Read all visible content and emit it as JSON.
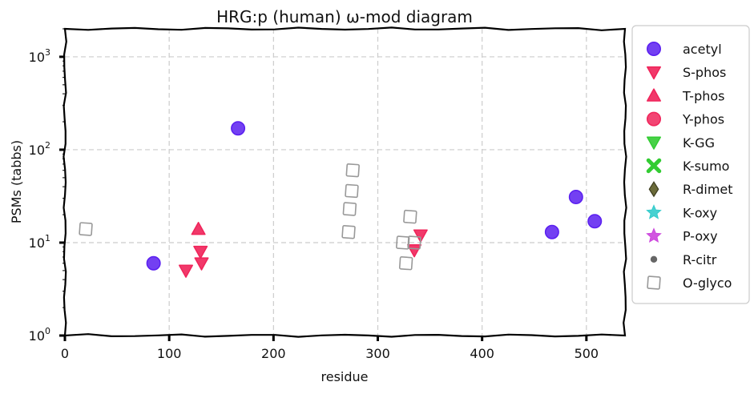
{
  "chart_data": {
    "type": "scatter",
    "title": "HRG:p (human) ω-mod diagram",
    "xlabel": "residue",
    "ylabel": "PSMs (tabbs)",
    "xlim": [
      0,
      537
    ],
    "ylim": [
      1,
      2000
    ],
    "yscale": "log",
    "xticks": [
      0,
      100,
      200,
      300,
      400,
      500
    ],
    "yticks": [
      {
        "value": 1,
        "base": "10",
        "exp": "0"
      },
      {
        "value": 10,
        "base": "10",
        "exp": "1"
      },
      {
        "value": 100,
        "base": "10",
        "exp": "2"
      },
      {
        "value": 1000,
        "base": "10",
        "exp": "3"
      }
    ],
    "grid": true,
    "legend_position": "outside-right",
    "series": [
      {
        "name": "acetyl",
        "marker": "circle",
        "color": "#5a1ff0",
        "points": [
          [
            85,
            6
          ],
          [
            166,
            170
          ],
          [
            467,
            13
          ],
          [
            490,
            31
          ],
          [
            508,
            17
          ]
        ]
      },
      {
        "name": "S-phos",
        "marker": "triangle-down",
        "color": "#f0245a",
        "points": [
          [
            116,
            5
          ],
          [
            130,
            8
          ],
          [
            131,
            6
          ],
          [
            335,
            8.3
          ],
          [
            341,
            12
          ]
        ]
      },
      {
        "name": "T-phos",
        "marker": "triangle-up",
        "color": "#f0245a",
        "points": [
          [
            128,
            14
          ]
        ]
      },
      {
        "name": "Y-phos",
        "marker": "circle",
        "color": "#f0245a",
        "points": []
      },
      {
        "name": "K-GG",
        "marker": "triangle-down",
        "color": "#33cc33",
        "points": []
      },
      {
        "name": "K-sumo",
        "marker": "x",
        "color": "#33cc33",
        "points": []
      },
      {
        "name": "R-dimet",
        "marker": "diamond",
        "color": "#6b6b3a",
        "points": []
      },
      {
        "name": "K-oxy",
        "marker": "star",
        "color": "#33cccc",
        "points": []
      },
      {
        "name": "P-oxy",
        "marker": "star",
        "color": "#cc44dd",
        "points": []
      },
      {
        "name": "R-citr",
        "marker": "small-circle",
        "color": "#666666",
        "points": []
      },
      {
        "name": "O-glyco",
        "marker": "square-open",
        "color": "#999999",
        "points": [
          [
            20,
            14
          ],
          [
            272,
            13
          ],
          [
            273,
            23
          ],
          [
            275,
            36
          ],
          [
            276,
            60
          ],
          [
            324,
            10
          ],
          [
            327,
            6
          ],
          [
            331,
            19
          ],
          [
            335,
            10
          ]
        ]
      }
    ]
  }
}
